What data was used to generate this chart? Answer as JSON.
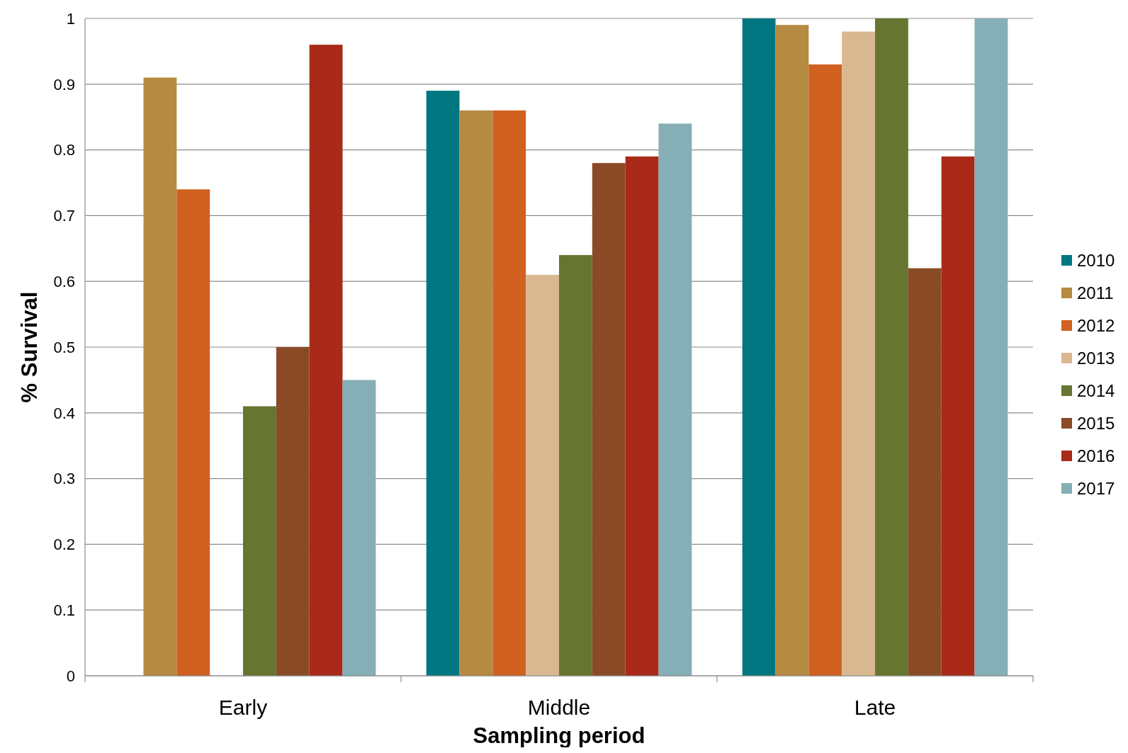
{
  "chart_data": {
    "type": "bar",
    "xlabel": "Sampling period",
    "ylabel": "% Survival",
    "categories": [
      "Early",
      "Middle",
      "Late"
    ],
    "series": [
      {
        "name": "2010",
        "color": "#007780",
        "values": [
          null,
          0.89,
          1.0
        ]
      },
      {
        "name": "2011",
        "color": "#b58a41",
        "values": [
          0.91,
          0.86,
          0.99
        ]
      },
      {
        "name": "2012",
        "color": "#d06120",
        "values": [
          0.74,
          0.86,
          0.93
        ]
      },
      {
        "name": "2013",
        "color": "#d9b891",
        "values": [
          null,
          0.61,
          0.98
        ]
      },
      {
        "name": "2014",
        "color": "#667530",
        "values": [
          0.41,
          0.64,
          1.0
        ]
      },
      {
        "name": "2015",
        "color": "#8a4a26",
        "values": [
          0.5,
          0.78,
          0.62
        ]
      },
      {
        "name": "2016",
        "color": "#a92a18",
        "values": [
          0.96,
          0.79,
          0.79
        ]
      },
      {
        "name": "2017",
        "color": "#85aeb6",
        "values": [
          0.45,
          0.84,
          1.0
        ]
      }
    ],
    "ylim": [
      0,
      1
    ],
    "yticks": [
      0,
      0.1,
      0.2,
      0.3,
      0.4,
      0.5,
      0.6,
      0.7,
      0.8,
      0.9,
      1
    ],
    "grid": "y",
    "legend": "right"
  }
}
